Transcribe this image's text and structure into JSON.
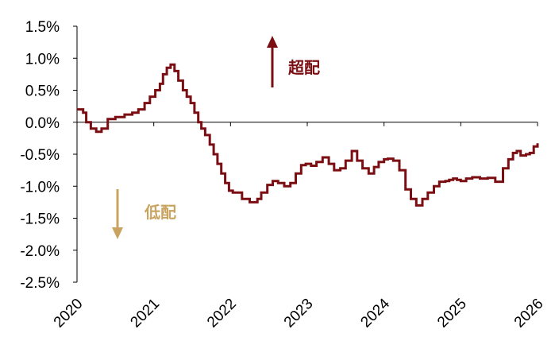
{
  "chart_data": {
    "type": "line",
    "title": "",
    "xlabel": "",
    "ylabel": "",
    "xlim": [
      2020.0,
      2026.0
    ],
    "ylim": [
      -2.5,
      1.5
    ],
    "x_ticks": [
      "2020",
      "2021",
      "2022",
      "2023",
      "2024",
      "2025",
      "2026"
    ],
    "y_ticks": [
      "1.5%",
      "1.0%",
      "0.5%",
      "0.0%",
      "-0.5%",
      "-1.0%",
      "-1.5%",
      "-2.0%",
      "-2.5%"
    ],
    "grid": false,
    "line_color": "#7a0e12",
    "series": [
      {
        "x": [
          2020.0,
          2020.08,
          2020.12,
          2020.18,
          2020.25,
          2020.32,
          2020.4,
          2020.5,
          2020.62,
          2020.72,
          2020.8,
          2020.88,
          2020.95,
          2021.02,
          2021.08,
          2021.12,
          2021.17,
          2021.22,
          2021.27,
          2021.32,
          2021.38,
          2021.43,
          2021.48,
          2021.53,
          2021.58,
          2021.62,
          2021.67,
          2021.73,
          2021.78,
          2021.83,
          2021.88,
          2021.93,
          2021.98,
          2022.03,
          2022.08,
          2022.15,
          2022.25,
          2022.35,
          2022.4,
          2022.48,
          2022.55,
          2022.62,
          2022.7,
          2022.78,
          2022.85,
          2022.92,
          2022.98,
          2023.05,
          2023.12,
          2023.2,
          2023.28,
          2023.35,
          2023.43,
          2023.5,
          2023.58,
          2023.65,
          2023.72,
          2023.8,
          2023.87,
          2023.93,
          2024.0,
          2024.05,
          2024.12,
          2024.2,
          2024.28,
          2024.35,
          2024.42,
          2024.5,
          2024.57,
          2024.65,
          2024.72,
          2024.8,
          2024.85,
          2024.9,
          2024.95,
          2025.0,
          2025.07,
          2025.15,
          2025.25,
          2025.35,
          2025.45,
          2025.55,
          2025.62,
          2025.68,
          2025.73,
          2025.78,
          2025.85,
          2025.9,
          2025.95,
          2026.0
        ],
        "y": [
          0.2,
          0.15,
          0.0,
          -0.1,
          -0.15,
          -0.1,
          0.05,
          0.08,
          0.12,
          0.15,
          0.2,
          0.3,
          0.4,
          0.5,
          0.6,
          0.75,
          0.85,
          0.9,
          0.8,
          0.65,
          0.5,
          0.4,
          0.3,
          0.15,
          0.0,
          -0.1,
          -0.2,
          -0.35,
          -0.5,
          -0.65,
          -0.8,
          -0.95,
          -1.07,
          -1.1,
          -1.1,
          -1.2,
          -1.25,
          -1.2,
          -1.1,
          -0.98,
          -0.92,
          -0.95,
          -1.0,
          -0.95,
          -0.8,
          -0.67,
          -0.65,
          -0.68,
          -0.62,
          -0.55,
          -0.65,
          -0.75,
          -0.72,
          -0.6,
          -0.45,
          -0.6,
          -0.72,
          -0.8,
          -0.7,
          -0.62,
          -0.58,
          -0.57,
          -0.6,
          -0.75,
          -1.05,
          -1.2,
          -1.3,
          -1.2,
          -1.1,
          -1.0,
          -0.93,
          -0.92,
          -0.9,
          -0.88,
          -0.9,
          -0.92,
          -0.88,
          -0.86,
          -0.88,
          -0.87,
          -0.93,
          -0.72,
          -0.58,
          -0.48,
          -0.45,
          -0.52,
          -0.5,
          -0.48,
          -0.38,
          -0.33
        ]
      }
    ],
    "annotations": [
      {
        "text": "超配",
        "direction": "up",
        "color": "#7a0e12"
      },
      {
        "text": "低配",
        "direction": "down",
        "color": "#c9a461"
      }
    ]
  }
}
